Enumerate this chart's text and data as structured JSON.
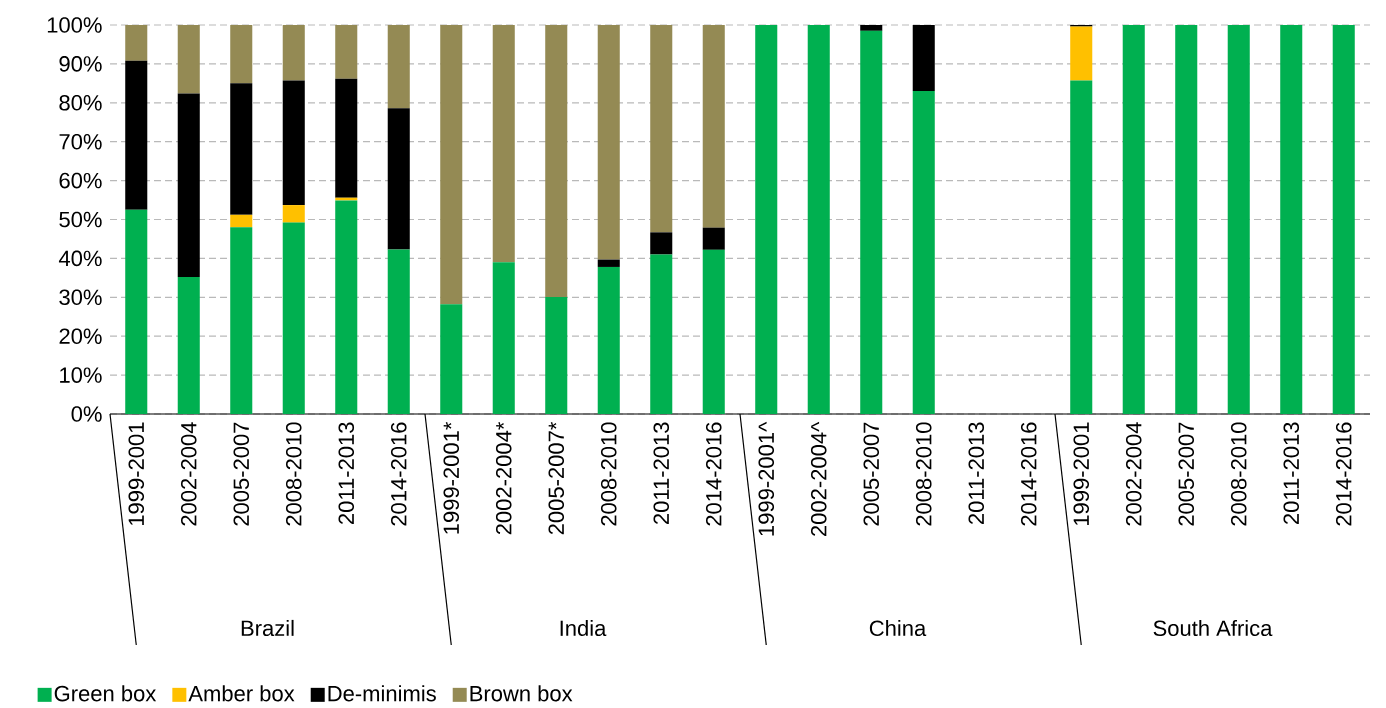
{
  "chart_data": {
    "type": "bar",
    "stacked": true,
    "categories": [
      "1999-2001",
      "2002-2004",
      "2005-2007",
      "2008-2010",
      "2011-2013",
      "2014-2016",
      "1999-2001*",
      "2002-2004*",
      "2005-2007*",
      "2008-2010",
      "2011-2013",
      "2014-2016",
      "1999-2001^",
      "2002-2004^",
      "2005-2007",
      "2008-2010",
      "2011-2013",
      "2014-2016",
      "1999-2001",
      "2002-2004",
      "2005-2007",
      "2008-2010",
      "2011-2013",
      "2014-2016"
    ],
    "series": [
      {
        "name": "Green box",
        "color": "#00b050",
        "values": [
          52.5,
          35.2,
          48.0,
          49.2,
          54.9,
          42.3,
          28.2,
          39.0,
          30.1,
          37.8,
          41.0,
          42.2,
          100,
          100,
          98.5,
          83.0,
          null,
          null,
          85.7,
          100,
          100,
          100,
          100,
          100
        ]
      },
      {
        "name": "Amber box",
        "color": "#ffc000",
        "values": [
          0,
          0,
          3.2,
          4.5,
          0.7,
          0,
          0,
          0,
          0,
          0,
          0,
          0,
          0,
          0,
          0,
          0,
          null,
          null,
          13.9,
          0,
          0,
          0,
          0,
          0
        ]
      },
      {
        "name": "De-minimis",
        "color": "#000000",
        "values": [
          38.3,
          47.2,
          33.8,
          32.0,
          30.6,
          36.3,
          0,
          0,
          0,
          1.9,
          5.7,
          5.7,
          0,
          0,
          1.5,
          17.0,
          null,
          null,
          0.4,
          0,
          0,
          0,
          0,
          0
        ]
      },
      {
        "name": "Brown box",
        "color": "#948a54",
        "values": [
          9.2,
          17.6,
          15.0,
          14.3,
          13.8,
          21.4,
          71.8,
          61.0,
          69.9,
          60.3,
          53.3,
          52.1,
          0,
          0,
          0,
          0,
          null,
          null,
          0,
          0,
          0,
          0,
          0,
          0
        ]
      }
    ],
    "ylim": [
      0,
      100
    ],
    "yticks": [
      {
        "value": 0,
        "label": "0%"
      },
      {
        "value": 10,
        "label": "10%"
      },
      {
        "value": 20,
        "label": "20%"
      },
      {
        "value": 30,
        "label": "30%"
      },
      {
        "value": 40,
        "label": "40%"
      },
      {
        "value": 50,
        "label": "50%"
      },
      {
        "value": 60,
        "label": "60%"
      },
      {
        "value": 70,
        "label": "70%"
      },
      {
        "value": 80,
        "label": "80%"
      },
      {
        "value": 90,
        "label": "90%"
      },
      {
        "value": 100,
        "label": "100%"
      }
    ],
    "annotations": [
      "Brazil",
      "India",
      "China",
      "South Africa"
    ],
    "grid": "y",
    "legend": "bottom"
  }
}
